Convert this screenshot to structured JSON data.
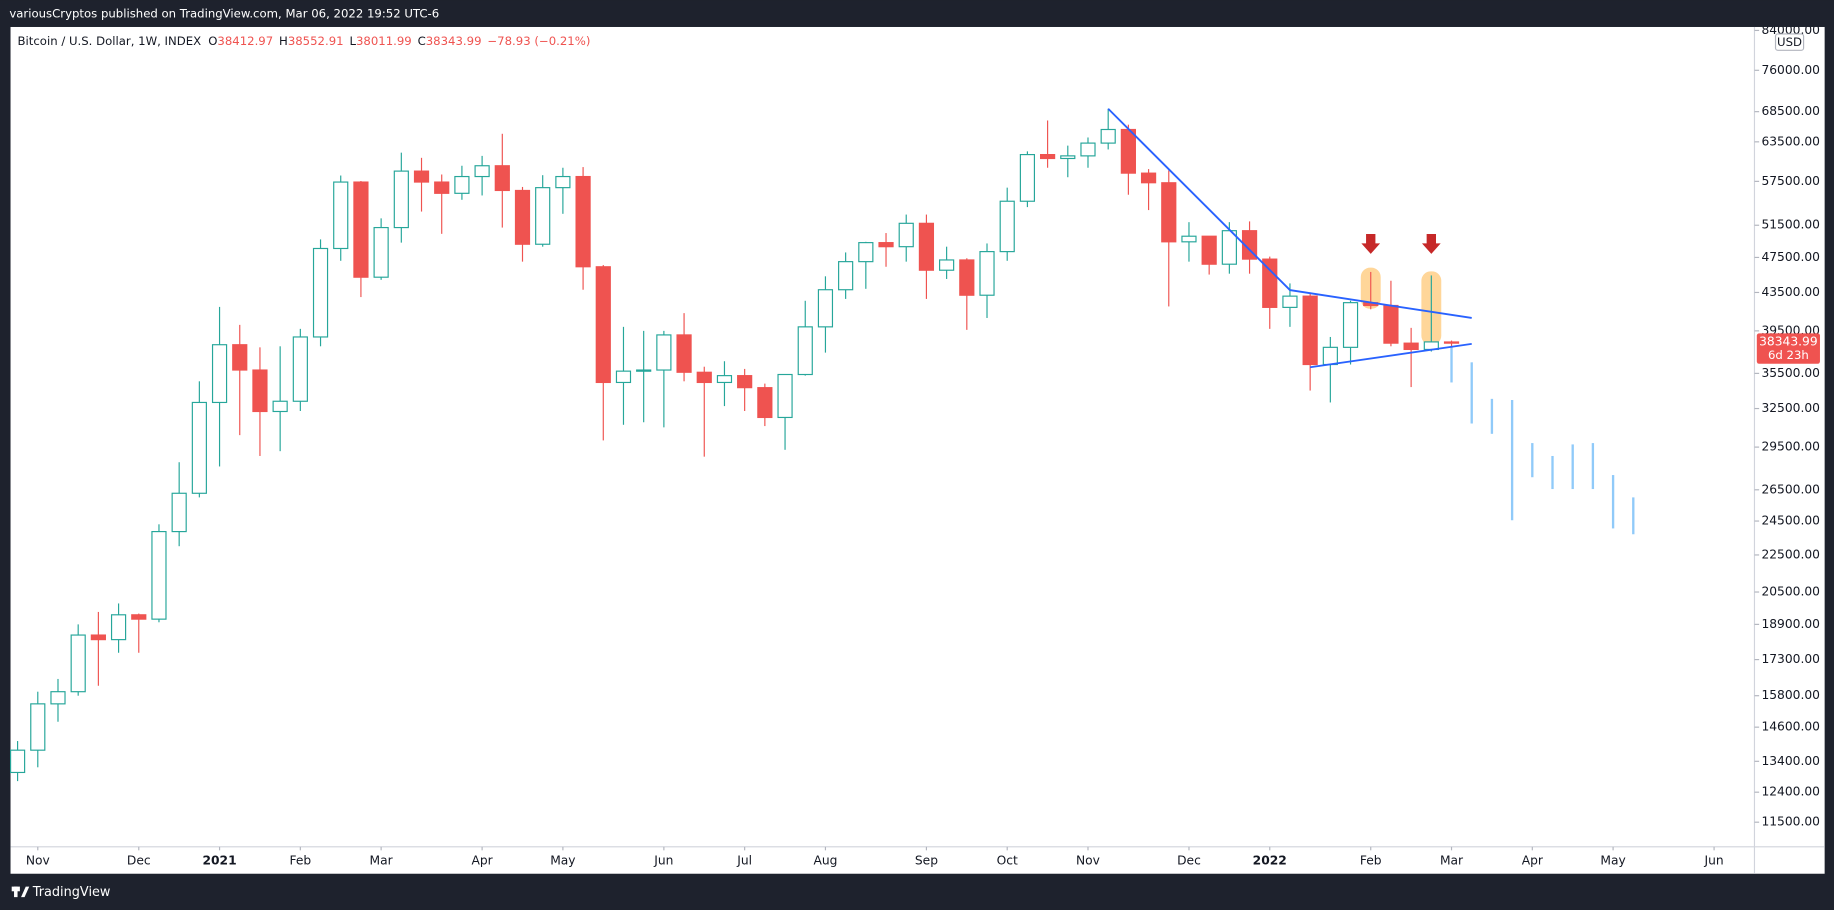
{
  "header": {
    "publisher": "variousCryptos published on TradingView.com, Mar 06, 2022 19:52 UTC-6"
  },
  "footer": {
    "brand": "TradingView"
  },
  "chart_data": {
    "type": "candlestick",
    "symbol": "Bitcoin / U.S. Dollar, 1W, INDEX",
    "ohlc_letters": [
      "O",
      "H",
      "L",
      "C"
    ],
    "change": "−78.93 (−0.21%)",
    "currency": "USD",
    "countdown": "6d 23h",
    "up_color": "#26a69a",
    "down_color": "#ef5350",
    "hollow_up": true,
    "log_scale": true,
    "grid": false,
    "open": [
      13030,
      13780,
      15480,
      15960,
      18400,
      18190,
      19360,
      19150,
      23860,
      26270,
      33000,
      38150,
      35800,
      32260,
      33100,
      38900,
      48580,
      57400,
      45200,
      51200,
      59000,
      57400,
      55800,
      58200,
      59800,
      56200,
      49100,
      56600,
      58200,
      46400,
      34700,
      35700,
      35800,
      39100,
      35600,
      34700,
      35300,
      34250,
      31780,
      35400,
      39900,
      43800,
      47000,
      49300,
      48800,
      51750,
      46000,
      47200,
      43200,
      48200,
      54700,
      61500,
      60900,
      61300,
      63300,
      65500,
      58700,
      57300,
      49400,
      50100,
      46700,
      50800,
      47300,
      41900,
      43100,
      36300,
      37900,
      42400,
      42100,
      38300,
      37700,
      38412.97
    ],
    "high": [
      14100,
      15960,
      16480,
      18900,
      19500,
      19920,
      19420,
      24300,
      28400,
      34800,
      41950,
      40100,
      37900,
      38000,
      39700,
      49700,
      58350,
      57550,
      52400,
      61800,
      61000,
      58500,
      59800,
      61300,
      64800,
      56700,
      58400,
      59500,
      59600,
      46600,
      39900,
      39500,
      39500,
      41300,
      36100,
      36600,
      35900,
      34600,
      35400,
      42600,
      45300,
      48100,
      49400,
      50500,
      52900,
      52900,
      48800,
      47400,
      49200,
      56600,
      62000,
      67000,
      62900,
      64200,
      69000,
      66300,
      59300,
      59100,
      51900,
      50100,
      51900,
      52000,
      47600,
      44500,
      43500,
      38900,
      42600,
      45800,
      44800,
      39800,
      45400,
      38552.91
    ],
    "low": [
      12750,
      13200,
      14800,
      15800,
      16200,
      17600,
      17600,
      19000,
      23000,
      26000,
      28100,
      30400,
      28850,
      29200,
      32300,
      38000,
      47100,
      43000,
      44900,
      49300,
      53300,
      50400,
      54900,
      55500,
      51200,
      47000,
      48800,
      53000,
      43800,
      30000,
      31200,
      31400,
      31000,
      34800,
      28800,
      32700,
      32300,
      31100,
      29300,
      35300,
      37400,
      42800,
      43900,
      46400,
      47000,
      42800,
      45000,
      39600,
      40800,
      47100,
      53900,
      59500,
      58100,
      59500,
      62300,
      55600,
      53500,
      42000,
      47000,
      45500,
      45600,
      45600,
      39700,
      39900,
      34000,
      33000,
      36300,
      41700,
      38000,
      34300,
      37500,
      38011.99
    ],
    "close": [
      13780,
      15480,
      15960,
      18400,
      18190,
      19360,
      19150,
      23860,
      26270,
      33000,
      38150,
      35800,
      32260,
      33100,
      38900,
      48580,
      57400,
      45200,
      51200,
      59000,
      57400,
      55800,
      58200,
      59800,
      56200,
      49100,
      56600,
      58200,
      46400,
      34700,
      35700,
      35800,
      39100,
      35600,
      34700,
      35300,
      34250,
      31780,
      35400,
      39900,
      43800,
      47000,
      49300,
      48800,
      51750,
      46000,
      47200,
      43200,
      48200,
      54700,
      61500,
      60900,
      61300,
      63300,
      65500,
      58700,
      57300,
      49400,
      50100,
      46700,
      50800,
      47300,
      41900,
      43100,
      36300,
      37900,
      42400,
      42100,
      38300,
      37700,
      38420,
      38343.99
    ],
    "xlim": [
      -0.35,
      86.0
    ],
    "xticks": [
      {
        "value": 1,
        "label": "Nov"
      },
      {
        "value": 6,
        "label": "Dec"
      },
      {
        "value": 10,
        "label": "2021"
      },
      {
        "value": 14,
        "label": "Feb"
      },
      {
        "value": 18,
        "label": "Mar"
      },
      {
        "value": 23,
        "label": "Apr"
      },
      {
        "value": 27,
        "label": "May"
      },
      {
        "value": 32,
        "label": "Jun"
      },
      {
        "value": 36,
        "label": "Jul"
      },
      {
        "value": 40,
        "label": "Aug"
      },
      {
        "value": 45,
        "label": "Sep"
      },
      {
        "value": 49,
        "label": "Oct"
      },
      {
        "value": 53,
        "label": "Nov"
      },
      {
        "value": 58,
        "label": "Dec"
      },
      {
        "value": 62,
        "label": "2022"
      },
      {
        "value": 67,
        "label": "Feb"
      },
      {
        "value": 71,
        "label": "Mar"
      },
      {
        "value": 75,
        "label": "Apr"
      },
      {
        "value": 79,
        "label": "May"
      },
      {
        "value": 84,
        "label": "Jun"
      }
    ],
    "ylim": [
      10810,
      84500
    ],
    "yticks": [
      {
        "value": 84000,
        "label": "84000.00"
      },
      {
        "value": 76000,
        "label": "76000.00"
      },
      {
        "value": 68500,
        "label": "68500.00"
      },
      {
        "value": 63500,
        "label": "63500.00"
      },
      {
        "value": 57500,
        "label": "57500.00"
      },
      {
        "value": 51500,
        "label": "51500.00"
      },
      {
        "value": 47500,
        "label": "47500.00"
      },
      {
        "value": 43500,
        "label": "43500.00"
      },
      {
        "value": 39500,
        "label": "39500.00"
      },
      {
        "value": 35500,
        "label": "35500.00"
      },
      {
        "value": 32500,
        "label": "32500.00"
      },
      {
        "value": 29500,
        "label": "29500.00"
      },
      {
        "value": 26500,
        "label": "26500.00"
      },
      {
        "value": 24500,
        "label": "24500.00"
      },
      {
        "value": 22500,
        "label": "22500.00"
      },
      {
        "value": 20500,
        "label": "20500.00"
      },
      {
        "value": 18900,
        "label": "18900.00"
      },
      {
        "value": 17300,
        "label": "17300.00"
      },
      {
        "value": 15800,
        "label": "15800.00"
      },
      {
        "value": 14600,
        "label": "14600.00"
      },
      {
        "value": 13400,
        "label": "13400.00"
      },
      {
        "value": 12400,
        "label": "12400.00"
      },
      {
        "value": 11500,
        "label": "11500.00"
      }
    ],
    "trendlines": [
      {
        "color": "#2962ff",
        "points": [
          [
            54,
            69000
          ],
          [
            63,
            43760
          ],
          [
            72,
            40800
          ]
        ]
      },
      {
        "color": "#2962ff",
        "points": [
          [
            64,
            36050
          ],
          [
            72,
            38230
          ]
        ]
      }
    ],
    "highlights": [
      {
        "color": "#ffcc80",
        "x": 67,
        "top": 46300,
        "bottom": 41750
      },
      {
        "color": "#ffcc80",
        "x": 70,
        "top": 45870,
        "bottom": 38120
      }
    ],
    "arrows": [
      {
        "color": "#c62828",
        "x": 67,
        "y": 47930
      },
      {
        "color": "#c62828",
        "x": 70,
        "y": 47930
      }
    ],
    "projection": {
      "color": "#90caf9",
      "x": [
        71,
        72,
        73,
        74,
        75,
        76,
        77,
        78,
        79,
        80
      ],
      "high": [
        37900,
        36500,
        33300,
        33200,
        29800,
        28850,
        29700,
        29800,
        27500,
        26000
      ],
      "low": [
        34700,
        31300,
        30500,
        24550,
        27350,
        26550,
        26550,
        26550,
        24050,
        23700
      ]
    }
  }
}
